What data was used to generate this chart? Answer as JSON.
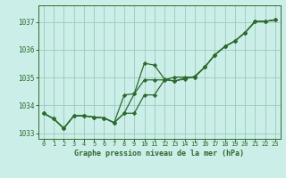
{
  "title": "Graphe pression niveau de la mer (hPa)",
  "bg_color": "#cceee8",
  "line_color": "#2d6a2d",
  "grid_color": "#99ccbb",
  "xlim": [
    -0.5,
    23.5
  ],
  "ylim": [
    1032.8,
    1037.6
  ],
  "yticks": [
    1033,
    1034,
    1035,
    1036,
    1037
  ],
  "xticks": [
    0,
    1,
    2,
    3,
    4,
    5,
    6,
    7,
    8,
    9,
    10,
    11,
    12,
    13,
    14,
    15,
    16,
    17,
    18,
    19,
    20,
    21,
    22,
    23
  ],
  "series": [
    [
      1033.72,
      1033.52,
      1033.18,
      1033.63,
      1033.63,
      1033.58,
      1033.55,
      1033.38,
      1033.72,
      1034.42,
      1035.52,
      1035.45,
      1034.95,
      1034.88,
      1034.95,
      1035.05,
      1035.38,
      1035.82,
      1036.12,
      1036.32,
      1036.62,
      1037.02,
      1037.02,
      1037.08
    ],
    [
      1033.72,
      1033.52,
      1033.18,
      1033.63,
      1033.63,
      1033.58,
      1033.55,
      1033.38,
      1034.38,
      1034.42,
      1034.92,
      1034.92,
      1034.92,
      1034.88,
      1034.98,
      1035.02,
      1035.38,
      1035.82,
      1036.12,
      1036.32,
      1036.62,
      1037.02,
      1037.02,
      1037.08
    ],
    [
      1033.72,
      1033.52,
      1033.18,
      1033.63,
      1033.63,
      1033.58,
      1033.55,
      1033.38,
      1033.72,
      1033.72,
      1034.38,
      1034.38,
      1034.92,
      1035.02,
      1035.02,
      1035.02,
      1035.38,
      1035.82,
      1036.12,
      1036.32,
      1036.62,
      1037.02,
      1037.02,
      1037.08
    ]
  ]
}
